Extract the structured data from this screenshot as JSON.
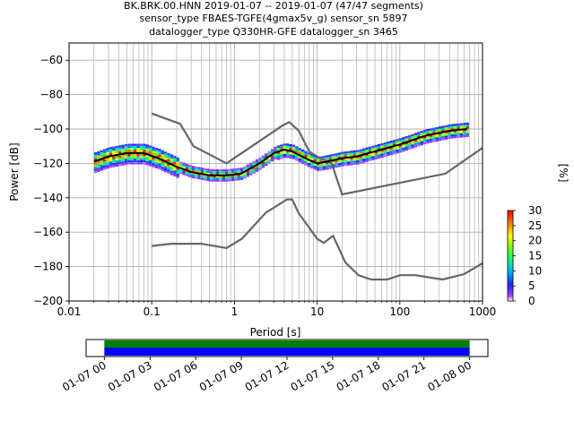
{
  "title_lines": [
    "BK.BRK.00.HNN   2019-01-07 -- 2019-01-07  (47/47 segments)",
    "sensor_type FBAES-TGFE(4gmax5v_g) sensor_sn 5897",
    "datalogger_type Q330HR-GFE datalogger_sn 3465"
  ],
  "chart_data": [
    {
      "type": "heatmap",
      "title": "",
      "xlabel": "Period [s]",
      "ylabel": "Power [dB]",
      "xscale": "log",
      "xlim": [
        0.01,
        1000
      ],
      "ylim": [
        -200,
        -50
      ],
      "grid": true,
      "x_ticks": [
        {
          "value": 0.01,
          "label": "0.01"
        },
        {
          "value": 0.1,
          "label": "0.1"
        },
        {
          "value": 1,
          "label": "1"
        },
        {
          "value": 10,
          "label": "10"
        },
        {
          "value": 100,
          "label": "100"
        },
        {
          "value": 1000,
          "label": "1000"
        }
      ],
      "y_ticks": [
        {
          "value": -60,
          "label": "−60"
        },
        {
          "value": -80,
          "label": "−80"
        },
        {
          "value": -100,
          "label": "−100"
        },
        {
          "value": -120,
          "label": "−120"
        },
        {
          "value": -140,
          "label": "−140"
        },
        {
          "value": -160,
          "label": "−160"
        },
        {
          "value": -180,
          "label": "−180"
        },
        {
          "value": -200,
          "label": "−200"
        }
      ],
      "mode_curve": {
        "x": [
          0.02,
          0.03,
          0.05,
          0.08,
          0.12,
          0.2,
          0.3,
          0.5,
          0.8,
          1.2,
          2,
          3,
          4,
          5,
          6,
          8,
          10,
          13,
          20,
          30,
          50,
          100,
          200,
          400,
          650
        ],
        "y": [
          -119,
          -116,
          -114,
          -114,
          -117,
          -122,
          -125,
          -127,
          -127,
          -126,
          -120,
          -114,
          -112,
          -113,
          -115,
          -118,
          -120,
          -119,
          -117,
          -116,
          -113,
          -109,
          -104,
          -101,
          -100
        ]
      },
      "model_curves": [
        {
          "name": "high",
          "x": [
            0.1,
            0.22,
            0.32,
            0.8,
            3.8,
            4.6,
            6.0,
            8.0,
            10,
            15,
            20,
            354,
            1000
          ],
          "y": [
            -91,
            -97,
            -110,
            -120,
            -98,
            -96,
            -101,
            -113,
            -116,
            -120,
            -138,
            -126,
            -111
          ]
        },
        {
          "name": "low",
          "x": [
            0.1,
            0.17,
            0.4,
            0.8,
            1.24,
            2.4,
            4.3,
            5.0,
            6.0,
            10,
            12,
            15.6,
            21.9,
            31.6,
            45,
            70,
            101,
            154,
            328,
            600,
            1000
          ],
          "y": [
            -168,
            -166.7,
            -166.7,
            -169.2,
            -163.7,
            -148.6,
            -141,
            -141,
            -149,
            -163.8,
            -166.2,
            -162.1,
            -177.5,
            -185,
            -187.5,
            -187.5,
            -185,
            -185,
            -187.5,
            -184.4,
            -178
          ]
        }
      ],
      "colorbar": {
        "label": "[%]",
        "range": [
          0,
          30
        ],
        "ticks": [
          "0",
          "5",
          "10",
          "15",
          "20",
          "25",
          "30"
        ],
        "colormap": "pqlx"
      }
    },
    {
      "type": "timeline",
      "tick_labels": [
        "01-07 00",
        "01-07 03",
        "01-07 06",
        "01-07 09",
        "01-07 12",
        "01-07 15",
        "01-07 18",
        "01-07 21",
        "01-08 00"
      ],
      "coverage_hours": [
        0,
        24
      ],
      "xlim_hours": [
        -1.2,
        25.2
      ],
      "colors": {
        "data": "#0000ff",
        "stack": "#008000"
      }
    }
  ]
}
